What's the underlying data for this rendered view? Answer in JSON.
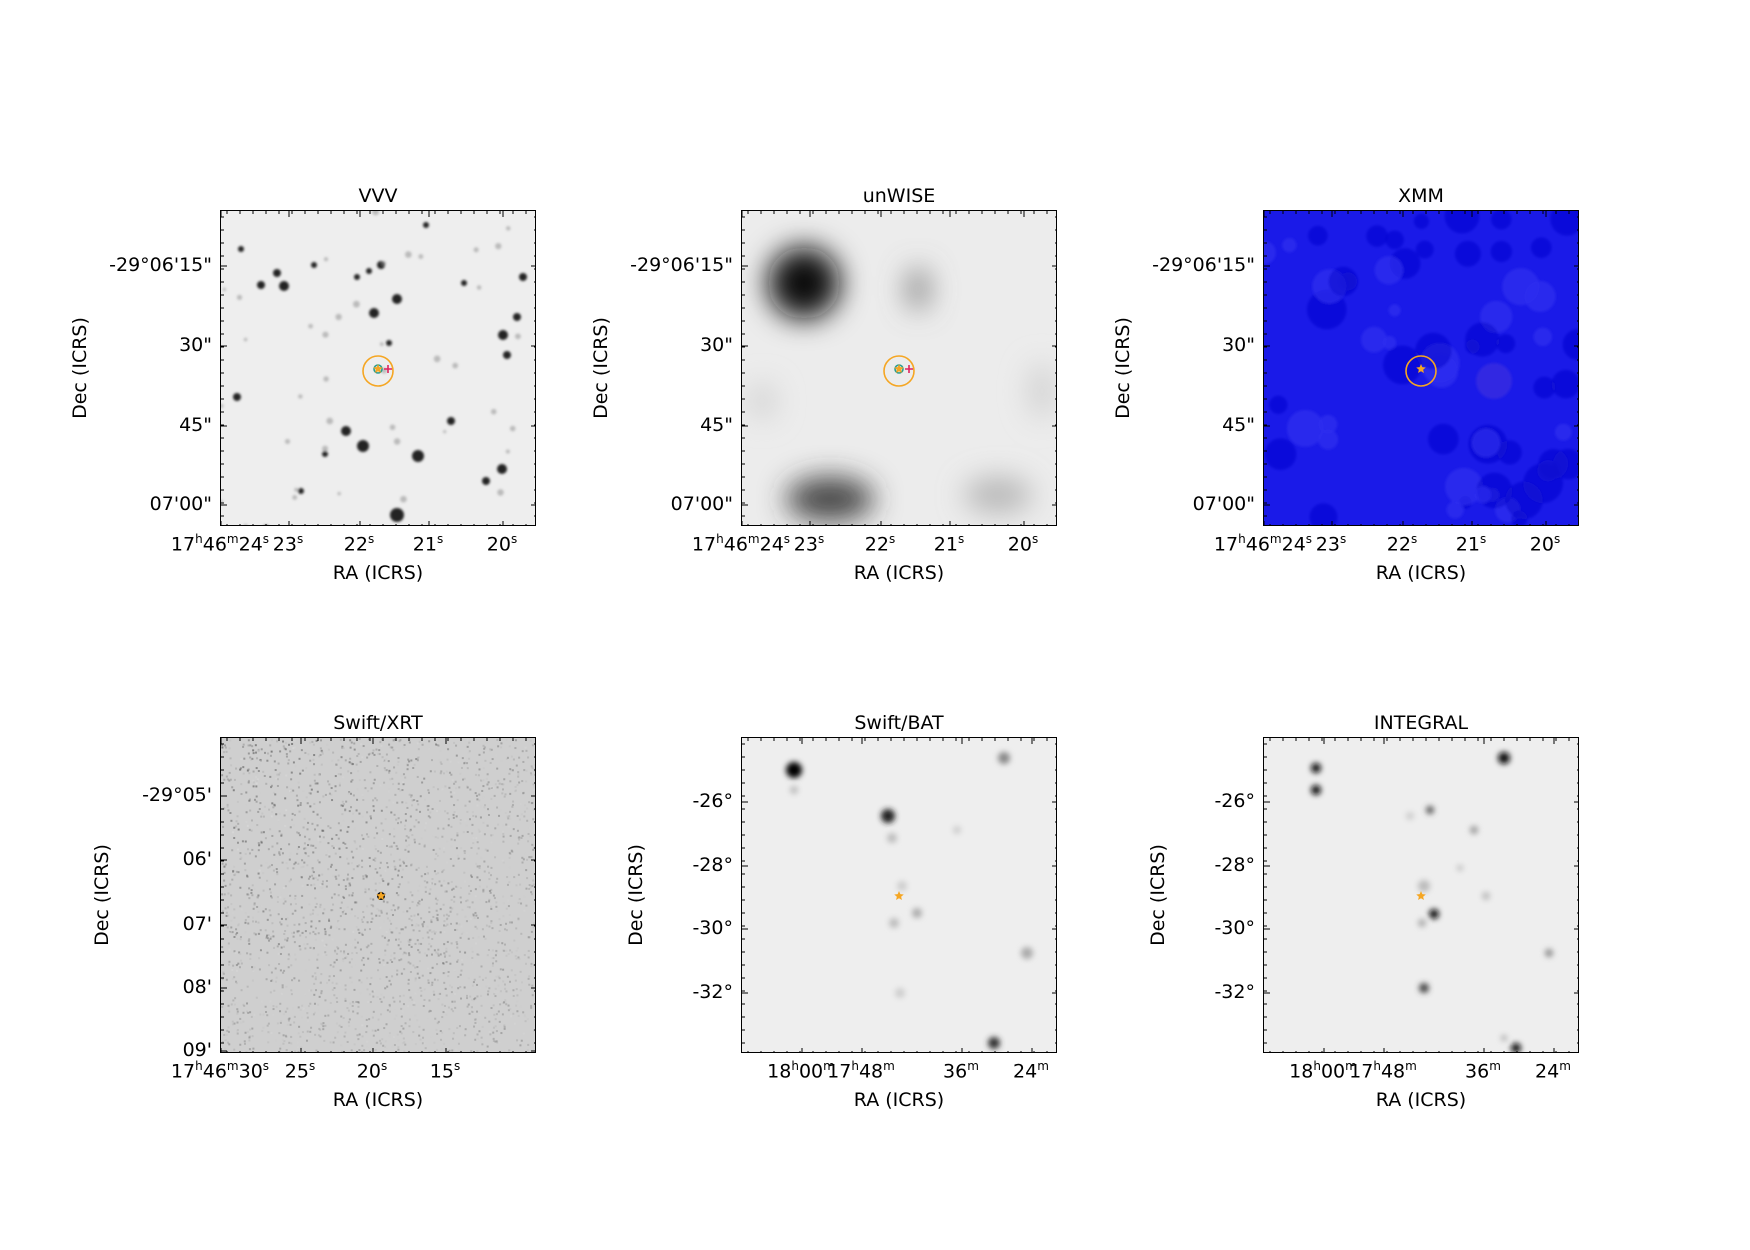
{
  "panels": [
    {
      "id": "vvv",
      "title": "VVV",
      "xlabel": "RA (ICRS)",
      "ylabel": "Dec (ICRS)",
      "yticks": [
        "-29°06'15\"",
        "30\"",
        "45\"",
        "07'00\""
      ],
      "xticks": [
        {
          "h": "17",
          "m": "46",
          "s": "24"
        },
        {
          "s": "23"
        },
        {
          "s": "22"
        },
        {
          "s": "21"
        },
        {
          "s": "20"
        }
      ]
    },
    {
      "id": "unwise",
      "title": "unWISE",
      "xlabel": "RA (ICRS)",
      "ylabel": "Dec (ICRS)",
      "yticks": [
        "-29°06'15\"",
        "30\"",
        "45\"",
        "07'00\""
      ],
      "xticks": [
        {
          "h": "17",
          "m": "46",
          "s": "24"
        },
        {
          "s": "23"
        },
        {
          "s": "22"
        },
        {
          "s": "21"
        },
        {
          "s": "20"
        }
      ]
    },
    {
      "id": "xmm",
      "title": "XMM",
      "xlabel": "RA (ICRS)",
      "ylabel": "Dec (ICRS)",
      "yticks": [
        "-29°06'15\"",
        "30\"",
        "45\"",
        "07'00\""
      ],
      "xticks": [
        {
          "h": "17",
          "m": "46",
          "s": "24"
        },
        {
          "s": "23"
        },
        {
          "s": "22"
        },
        {
          "s": "21"
        },
        {
          "s": "20"
        }
      ]
    },
    {
      "id": "xrt",
      "title": "Swift/XRT",
      "xlabel": "RA (ICRS)",
      "ylabel": "Dec (ICRS)",
      "yticks": [
        "-29°05'",
        "06'",
        "07'",
        "08'",
        "09'"
      ],
      "xticks": [
        {
          "h": "17",
          "m": "46",
          "s": "30"
        },
        {
          "s": "25"
        },
        {
          "s": "20"
        },
        {
          "s": "15"
        }
      ]
    },
    {
      "id": "bat",
      "title": "Swift/BAT",
      "xlabel": "RA (ICRS)",
      "ylabel": "Dec (ICRS)",
      "yticks": [
        "-26°",
        "-28°",
        "-30°",
        "-32°"
      ],
      "xticks": [
        {
          "h": "18",
          "m": "00"
        },
        {
          "h": "17",
          "m": "48"
        },
        {
          "m": "36"
        },
        {
          "m": "24"
        }
      ]
    },
    {
      "id": "integral",
      "title": "INTEGRAL",
      "xlabel": "RA (ICRS)",
      "ylabel": "Dec (ICRS)",
      "yticks": [
        "-26°",
        "-28°",
        "-30°",
        "-32°"
      ],
      "xticks": [
        {
          "h": "18",
          "m": "00"
        },
        {
          "h": "17",
          "m": "48"
        },
        {
          "m": "36"
        },
        {
          "m": "24"
        }
      ]
    }
  ],
  "colors": {
    "circle": "#f5a623",
    "star": "#f5a623",
    "cross": "#e0245e",
    "marker": "#2a9d8f",
    "xmm_bg": "#1a1ae8"
  }
}
